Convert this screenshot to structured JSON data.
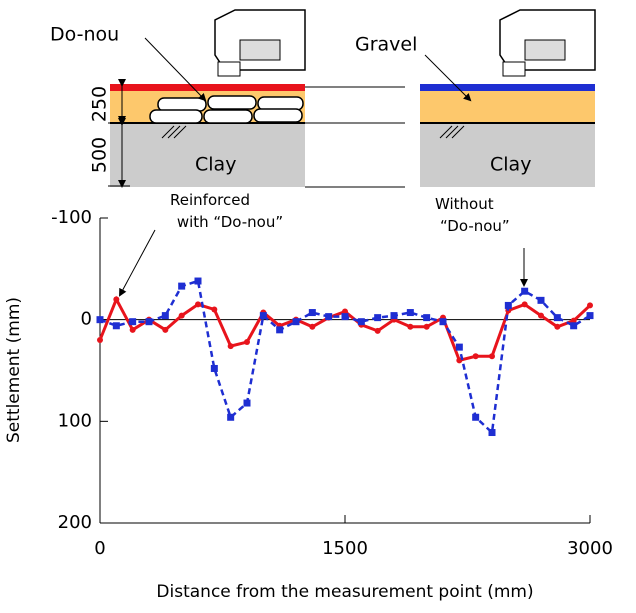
{
  "chart_data": {
    "type": "line",
    "x": [
      0,
      100,
      200,
      300,
      400,
      500,
      600,
      700,
      800,
      900,
      1000,
      1100,
      1200,
      1300,
      1400,
      1500,
      1600,
      1700,
      1800,
      1900,
      2000,
      2100,
      2200,
      2300,
      2400,
      2500,
      2600,
      2700,
      2800,
      2900,
      3000
    ],
    "series": [
      {
        "name": "Reinforced",
        "color": "#e8141c",
        "marker": "circle",
        "dashed": false,
        "values": [
          20,
          -20,
          10,
          0,
          10,
          -4,
          -15,
          -10,
          26,
          22,
          -7,
          6,
          0,
          7,
          -2,
          -8,
          5,
          11,
          0,
          7,
          7,
          -2,
          40,
          36,
          36,
          -9,
          -15,
          -4,
          7,
          1,
          -14
        ]
      },
      {
        "name": "Without",
        "color": "#1e2ed2",
        "marker": "square",
        "dashed": true,
        "values": [
          0,
          6,
          2,
          2,
          -4,
          -33,
          -38,
          48,
          96,
          82,
          -4,
          10,
          2,
          -7,
          -3,
          -3,
          2,
          -2,
          -4,
          -7,
          -2,
          2,
          27,
          96,
          111,
          -14,
          -28,
          -19,
          -2,
          6,
          -4
        ]
      }
    ],
    "xlim": [
      0,
      3000
    ],
    "xticks": [
      0,
      1500,
      3000
    ],
    "ylim": [
      -100,
      200
    ],
    "yticks": [
      -100,
      0,
      100,
      200
    ],
    "xlabel": "Distance from the measurement point (mm)",
    "ylabel": "Settlement (mm)",
    "zero_line": true,
    "annotations": {
      "reinforced": [
        "Reinforced",
        "with “Do-nou”"
      ],
      "without": [
        "Without",
        "“Do-nou”"
      ]
    }
  },
  "diagram": {
    "donou": "Do-nou",
    "gravel": "Gravel",
    "clay_left": "Clay",
    "clay_right": "Clay",
    "dim_250": "250",
    "dim_500": "500"
  }
}
